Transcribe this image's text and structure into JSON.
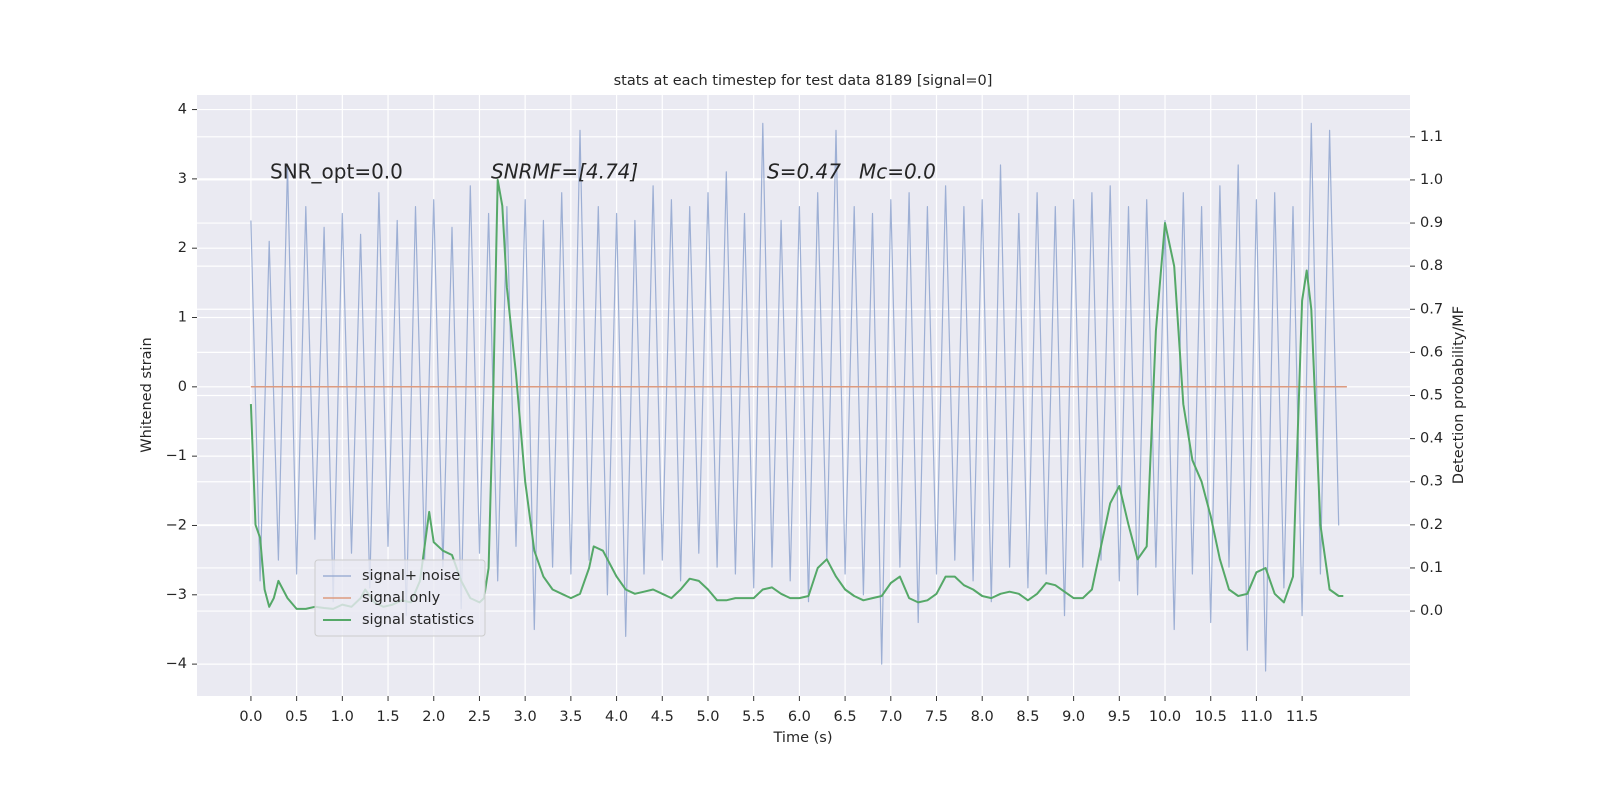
{
  "chart_data": {
    "type": "line",
    "title": "stats at each timestep for test data 8189 [signal=0]",
    "xlabel": "Time (s)",
    "ylabel": "Whitened strain",
    "y2label": "Detection probability/MF",
    "annotations": [
      "SNR_opt=0.0",
      "SNRMF=[4.74]",
      "S=0.47",
      "Mc=0.0"
    ],
    "grid": true,
    "legend": "lower left",
    "xlim": [
      -0.59,
      12.68
    ],
    "ylim": [
      -4.46,
      4.21
    ],
    "y2lim": [
      -0.197,
      1.197
    ],
    "xticks": [
      {
        "value": 0,
        "label": "0.0"
      },
      0.5,
      {
        "value": 1,
        "label": "1.0"
      },
      1.5,
      {
        "value": 2,
        "label": "2.0"
      },
      2.5,
      {
        "value": 3,
        "label": "3.0"
      },
      3.5,
      {
        "value": 4,
        "label": "4.0"
      },
      4.5,
      {
        "value": 5,
        "label": "5.0"
      },
      5.5,
      {
        "value": 6,
        "label": "6.0"
      },
      6.5,
      {
        "value": 7,
        "label": "7.0"
      },
      7.5,
      {
        "value": 8,
        "label": "8.0"
      },
      8.5,
      {
        "value": 9,
        "label": "9.0"
      },
      9.5,
      {
        "value": 10,
        "label": "10.0"
      },
      10.5,
      {
        "value": 11,
        "label": "11.0"
      },
      11.5
    ],
    "yticks": [
      {
        "value": -4,
        "label": "−4"
      },
      {
        "value": -3,
        "label": "−3"
      },
      {
        "value": -2,
        "label": "−2"
      },
      {
        "value": -1,
        "label": "−1"
      },
      0,
      1,
      2,
      3,
      4
    ],
    "y2ticks": [
      {
        "value": 0,
        "label": "0.0"
      },
      0.1,
      0.2,
      0.3,
      0.4,
      0.5,
      0.6,
      0.7,
      0.8,
      0.9,
      {
        "value": 1,
        "label": "1.0"
      },
      1.1
    ],
    "series": [
      {
        "name": "signal+ noise",
        "color": "#8fa5cf",
        "axis": "y",
        "x": [
          0,
          0.1,
          0.2,
          0.3,
          0.4,
          0.5,
          0.6,
          0.7,
          0.8,
          0.9,
          1,
          1.1,
          1.2,
          1.3,
          1.4,
          1.5,
          1.6,
          1.7,
          1.8,
          1.9,
          2,
          2.1,
          2.2,
          2.3,
          2.4,
          2.5,
          2.6,
          2.7,
          2.8,
          2.9,
          3,
          3.1,
          3.2,
          3.3,
          3.4,
          3.5,
          3.6,
          3.7,
          3.8,
          3.9,
          4,
          4.1,
          4.2,
          4.3,
          4.4,
          4.5,
          4.6,
          4.7,
          4.8,
          4.9,
          5,
          5.1,
          5.2,
          5.3,
          5.4,
          5.5,
          5.6,
          5.7,
          5.8,
          5.9,
          6,
          6.1,
          6.2,
          6.3,
          6.4,
          6.5,
          6.6,
          6.7,
          6.8,
          6.9,
          7,
          7.1,
          7.2,
          7.3,
          7.4,
          7.5,
          7.6,
          7.7,
          7.8,
          7.9,
          8,
          8.1,
          8.2,
          8.3,
          8.4,
          8.5,
          8.6,
          8.7,
          8.8,
          8.9,
          9,
          9.1,
          9.2,
          9.3,
          9.4,
          9.5,
          9.6,
          9.7,
          9.8,
          9.9,
          10,
          10.1,
          10.2,
          10.3,
          10.4,
          10.5,
          10.6,
          10.7,
          10.8,
          10.9,
          11,
          11.1,
          11.2,
          11.3,
          11.4,
          11.5,
          11.6,
          11.7,
          11.8,
          11.9
        ],
        "values": [
          2.4,
          -2.8,
          2.1,
          -2.5,
          3.2,
          -2.7,
          2.6,
          -2.2,
          2.3,
          -3.1,
          2.5,
          -2.4,
          2.2,
          -2.9,
          2.8,
          -2.3,
          2.4,
          -3.3,
          2.6,
          -2.5,
          2.7,
          -2.6,
          2.3,
          -3.2,
          2.9,
          -2.4,
          2.5,
          -2.8,
          2.6,
          -2.3,
          2.7,
          -3.5,
          2.4,
          -2.6,
          2.8,
          -2.7,
          3.7,
          -2.5,
          2.6,
          -3.0,
          2.5,
          -3.6,
          2.4,
          -2.7,
          2.9,
          -2.5,
          2.7,
          -2.8,
          2.6,
          -2.4,
          2.8,
          -2.6,
          3.1,
          -2.7,
          2.5,
          -2.9,
          3.8,
          -2.6,
          2.4,
          -2.8,
          2.6,
          -3.1,
          2.8,
          -2.5,
          3.7,
          -2.7,
          2.6,
          -3.0,
          2.5,
          -4.0,
          2.7,
          -2.6,
          2.8,
          -3.4,
          2.6,
          -2.7,
          2.9,
          -2.5,
          2.6,
          -2.8,
          2.7,
          -3.1,
          3.2,
          -2.6,
          2.5,
          -2.9,
          2.8,
          -2.7,
          2.6,
          -3.3,
          2.7,
          -2.6,
          2.8,
          -2.5,
          2.9,
          -2.8,
          2.6,
          -3.0,
          2.7,
          -2.6,
          2.4,
          -3.5,
          2.8,
          -2.7,
          2.6,
          -3.4,
          2.9,
          -2.6,
          3.2,
          -3.8,
          2.7,
          -4.1,
          2.8,
          -2.9,
          2.6,
          -3.3,
          3.8,
          -2.7,
          3.7,
          -2.0
        ],
        "linewidth": 1.2
      },
      {
        "name": "signal only",
        "color": "#dd9b7f",
        "axis": "y",
        "x": [
          0,
          11.99
        ],
        "values": [
          0,
          0
        ],
        "linewidth": 1.5
      },
      {
        "name": "signal statistics",
        "color": "#55a868",
        "axis": "y2",
        "x": [
          0,
          0.05,
          0.1,
          0.15,
          0.2,
          0.25,
          0.3,
          0.4,
          0.5,
          0.6,
          0.7,
          0.8,
          0.9,
          1,
          1.1,
          1.2,
          1.25,
          1.35,
          1.45,
          1.55,
          1.65,
          1.75,
          1.85,
          1.95,
          2,
          2.1,
          2.2,
          2.3,
          2.4,
          2.5,
          2.55,
          2.6,
          2.65,
          2.7,
          2.75,
          2.8,
          2.9,
          3,
          3.1,
          3.2,
          3.3,
          3.4,
          3.5,
          3.6,
          3.7,
          3.75,
          3.85,
          4,
          4.1,
          4.2,
          4.3,
          4.4,
          4.5,
          4.6,
          4.7,
          4.8,
          4.9,
          5,
          5.1,
          5.2,
          5.3,
          5.4,
          5.5,
          5.6,
          5.7,
          5.8,
          5.9,
          6,
          6.1,
          6.2,
          6.3,
          6.4,
          6.5,
          6.6,
          6.7,
          6.8,
          6.9,
          7,
          7.1,
          7.2,
          7.3,
          7.4,
          7.5,
          7.6,
          7.7,
          7.8,
          7.9,
          8,
          8.1,
          8.2,
          8.3,
          8.4,
          8.5,
          8.6,
          8.7,
          8.8,
          8.9,
          9,
          9.1,
          9.2,
          9.3,
          9.4,
          9.5,
          9.6,
          9.7,
          9.8,
          9.9,
          10,
          10.1,
          10.2,
          10.3,
          10.4,
          10.5,
          10.6,
          10.7,
          10.8,
          10.9,
          11,
          11.1,
          11.2,
          11.3,
          11.4,
          11.5,
          11.55,
          11.6,
          11.7,
          11.8,
          11.9,
          11.95
        ],
        "values": [
          0.48,
          0.2,
          0.17,
          0.05,
          0.01,
          0.03,
          0.07,
          0.03,
          0.005,
          0.005,
          0.01,
          0.007,
          0.005,
          0.015,
          0.01,
          0.03,
          0.05,
          0.02,
          0.01,
          0.015,
          0.025,
          0.02,
          0.07,
          0.23,
          0.16,
          0.14,
          0.13,
          0.07,
          0.03,
          0.02,
          0.03,
          0.1,
          0.5,
          1.0,
          0.94,
          0.75,
          0.55,
          0.3,
          0.14,
          0.08,
          0.05,
          0.04,
          0.03,
          0.04,
          0.1,
          0.15,
          0.14,
          0.08,
          0.05,
          0.04,
          0.045,
          0.05,
          0.04,
          0.03,
          0.05,
          0.075,
          0.07,
          0.05,
          0.025,
          0.025,
          0.03,
          0.03,
          0.03,
          0.05,
          0.055,
          0.04,
          0.03,
          0.03,
          0.035,
          0.1,
          0.12,
          0.08,
          0.05,
          0.035,
          0.025,
          0.03,
          0.035,
          0.065,
          0.08,
          0.03,
          0.02,
          0.025,
          0.04,
          0.08,
          0.08,
          0.06,
          0.05,
          0.035,
          0.03,
          0.04,
          0.045,
          0.04,
          0.025,
          0.04,
          0.065,
          0.06,
          0.045,
          0.03,
          0.03,
          0.05,
          0.15,
          0.25,
          0.29,
          0.2,
          0.12,
          0.15,
          0.65,
          0.9,
          0.8,
          0.48,
          0.35,
          0.3,
          0.22,
          0.12,
          0.05,
          0.035,
          0.04,
          0.09,
          0.1,
          0.04,
          0.02,
          0.08,
          0.72,
          0.79,
          0.7,
          0.2,
          0.05,
          0.035,
          0.035
        ],
        "linewidth": 2
      }
    ]
  }
}
